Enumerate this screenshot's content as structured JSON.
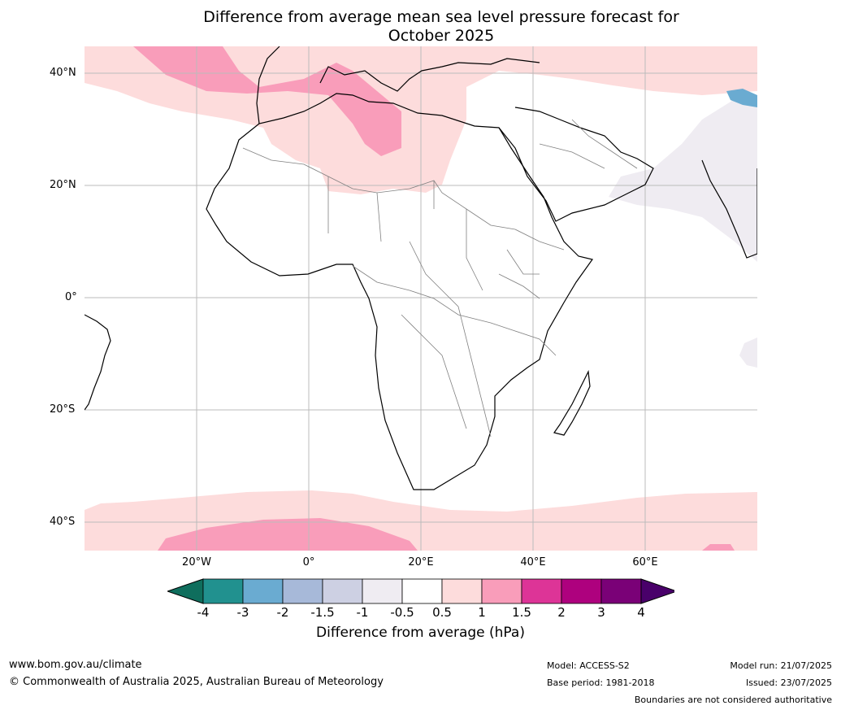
{
  "title_line1": "Difference from average mean sea level pressure forecast for",
  "title_line2": "October 2025",
  "lat_labels": [
    "40°N",
    "20°N",
    "0°",
    "20°S",
    "40°S"
  ],
  "lon_labels": [
    "20°W",
    "0°",
    "20°E",
    "40°E",
    "60°E"
  ],
  "colorbar": {
    "ticks": [
      "-4",
      "-3",
      "-2",
      "-1.5",
      "-1",
      "-0.5",
      "0.5",
      "1",
      "1.5",
      "2",
      "3",
      "4"
    ],
    "colors": [
      "#0f6e5d",
      "#21918f",
      "#6aabd1",
      "#a7b9d9",
      "#cdd0e3",
      "#efecf2",
      "#ffffff",
      "#fddcdc",
      "#f99dba",
      "#dd3497",
      "#ae017e",
      "#7a0177",
      "#49006a"
    ],
    "label": "Difference from average (hPa)"
  },
  "footer": {
    "website": "www.bom.gov.au/climate",
    "copyright": "© Commonwealth of Australia 2025, Australian Bureau of Meteorology",
    "model": "Model: ACCESS-S2",
    "base_period": "Base period: 1981-2018",
    "model_run": "Model run: 21/07/2025",
    "issued": "Issued: 23/07/2025",
    "disclaimer": "Boundaries are not considered authoritative"
  }
}
